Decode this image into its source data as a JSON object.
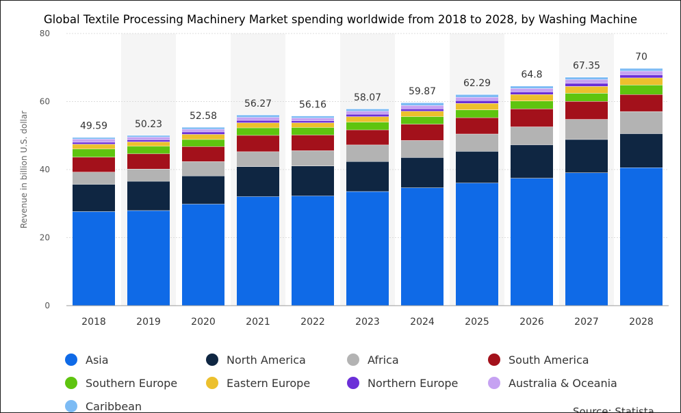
{
  "chart_data": {
    "type": "bar",
    "stacked": true,
    "title": "Global Textile Processing Machinery Market spending worldwide from 2018 to 2028, by Washing Machine",
    "xlabel": "",
    "ylabel": "Revenue in billion U.S. dollar",
    "ylim": [
      0,
      80
    ],
    "yticks": [
      0,
      20,
      40,
      60,
      80
    ],
    "grid": true,
    "legend_position": "bottom",
    "categories": [
      "2018",
      "2019",
      "2020",
      "2021",
      "2022",
      "2023",
      "2024",
      "2025",
      "2026",
      "2027",
      "2028"
    ],
    "totals": [
      "49.59",
      "50.23",
      "52.58",
      "56.27",
      "56.16",
      "58.07",
      "59.87",
      "62.29",
      "64.8",
      "67.35",
      "70"
    ],
    "series": [
      {
        "name": "Asia",
        "color": "#0f6ae7",
        "values": [
          27.7,
          28.0,
          29.9,
          32.1,
          32.3,
          33.6,
          34.7,
          36.1,
          37.5,
          39.1,
          40.6
        ]
      },
      {
        "name": "North America",
        "color": "#0f2642",
        "values": [
          8.0,
          8.6,
          8.3,
          8.8,
          8.8,
          8.8,
          8.9,
          9.3,
          9.8,
          9.8,
          10.0
        ]
      },
      {
        "name": "Africa",
        "color": "#b3b3b3",
        "values": [
          3.6,
          3.6,
          4.2,
          4.4,
          4.5,
          4.9,
          5.0,
          5.1,
          5.3,
          5.9,
          6.5
        ]
      },
      {
        "name": "South America",
        "color": "#a3111b",
        "values": [
          4.4,
          4.5,
          4.4,
          4.8,
          4.6,
          4.4,
          4.8,
          4.8,
          5.3,
          5.3,
          5.0
        ]
      },
      {
        "name": "Southern Europe",
        "color": "#5ec40f",
        "values": [
          2.4,
          2.2,
          2.1,
          2.2,
          2.2,
          2.3,
          2.2,
          2.3,
          2.3,
          2.4,
          2.8
        ]
      },
      {
        "name": "Eastern Europe",
        "color": "#ecc02d",
        "values": [
          1.4,
          1.3,
          1.5,
          1.5,
          1.4,
          1.6,
          1.6,
          1.9,
          1.9,
          2.0,
          2.1
        ]
      },
      {
        "name": "Northern Europe",
        "color": "#6b2fd8",
        "values": [
          0.6,
          0.6,
          0.7,
          0.7,
          0.6,
          0.7,
          0.7,
          0.8,
          0.8,
          0.9,
          0.9
        ]
      },
      {
        "name": "Australia & Oceania",
        "color": "#c6a2f2",
        "values": [
          0.9,
          0.8,
          0.8,
          0.9,
          0.8,
          0.9,
          1.0,
          1.0,
          1.0,
          1.1,
          1.1
        ]
      },
      {
        "name": "Caribbean",
        "color": "#7cbbf4",
        "values": [
          0.5,
          0.5,
          0.6,
          0.7,
          0.6,
          0.7,
          0.8,
          0.8,
          0.7,
          0.7,
          0.8
        ]
      }
    ]
  },
  "source_text": "Source: Statista"
}
